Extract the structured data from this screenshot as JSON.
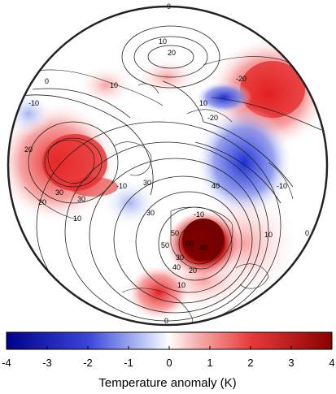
{
  "map": {
    "projection": "polar-stereographic",
    "contour_labels": [
      "0",
      "10",
      "20",
      "-20",
      "10",
      "0",
      "-10",
      "10",
      "-20",
      "-10",
      "20",
      "30",
      "30",
      "30",
      "-10",
      "20",
      "10",
      "50",
      "40",
      "40",
      "30",
      "50",
      "60",
      "40",
      "30",
      "20",
      "10",
      "-10",
      "10",
      "0",
      "0"
    ]
  },
  "colorbar": {
    "title": "Temperature anomaly (K)",
    "ticks": [
      "-4",
      "-3",
      "-2",
      "-1",
      "0",
      "1",
      "2",
      "3",
      "4"
    ],
    "range": [
      -4,
      4
    ],
    "colors": {
      "cold": "#00008b",
      "mid": "#ffffff",
      "warm": "#8b0000"
    }
  }
}
